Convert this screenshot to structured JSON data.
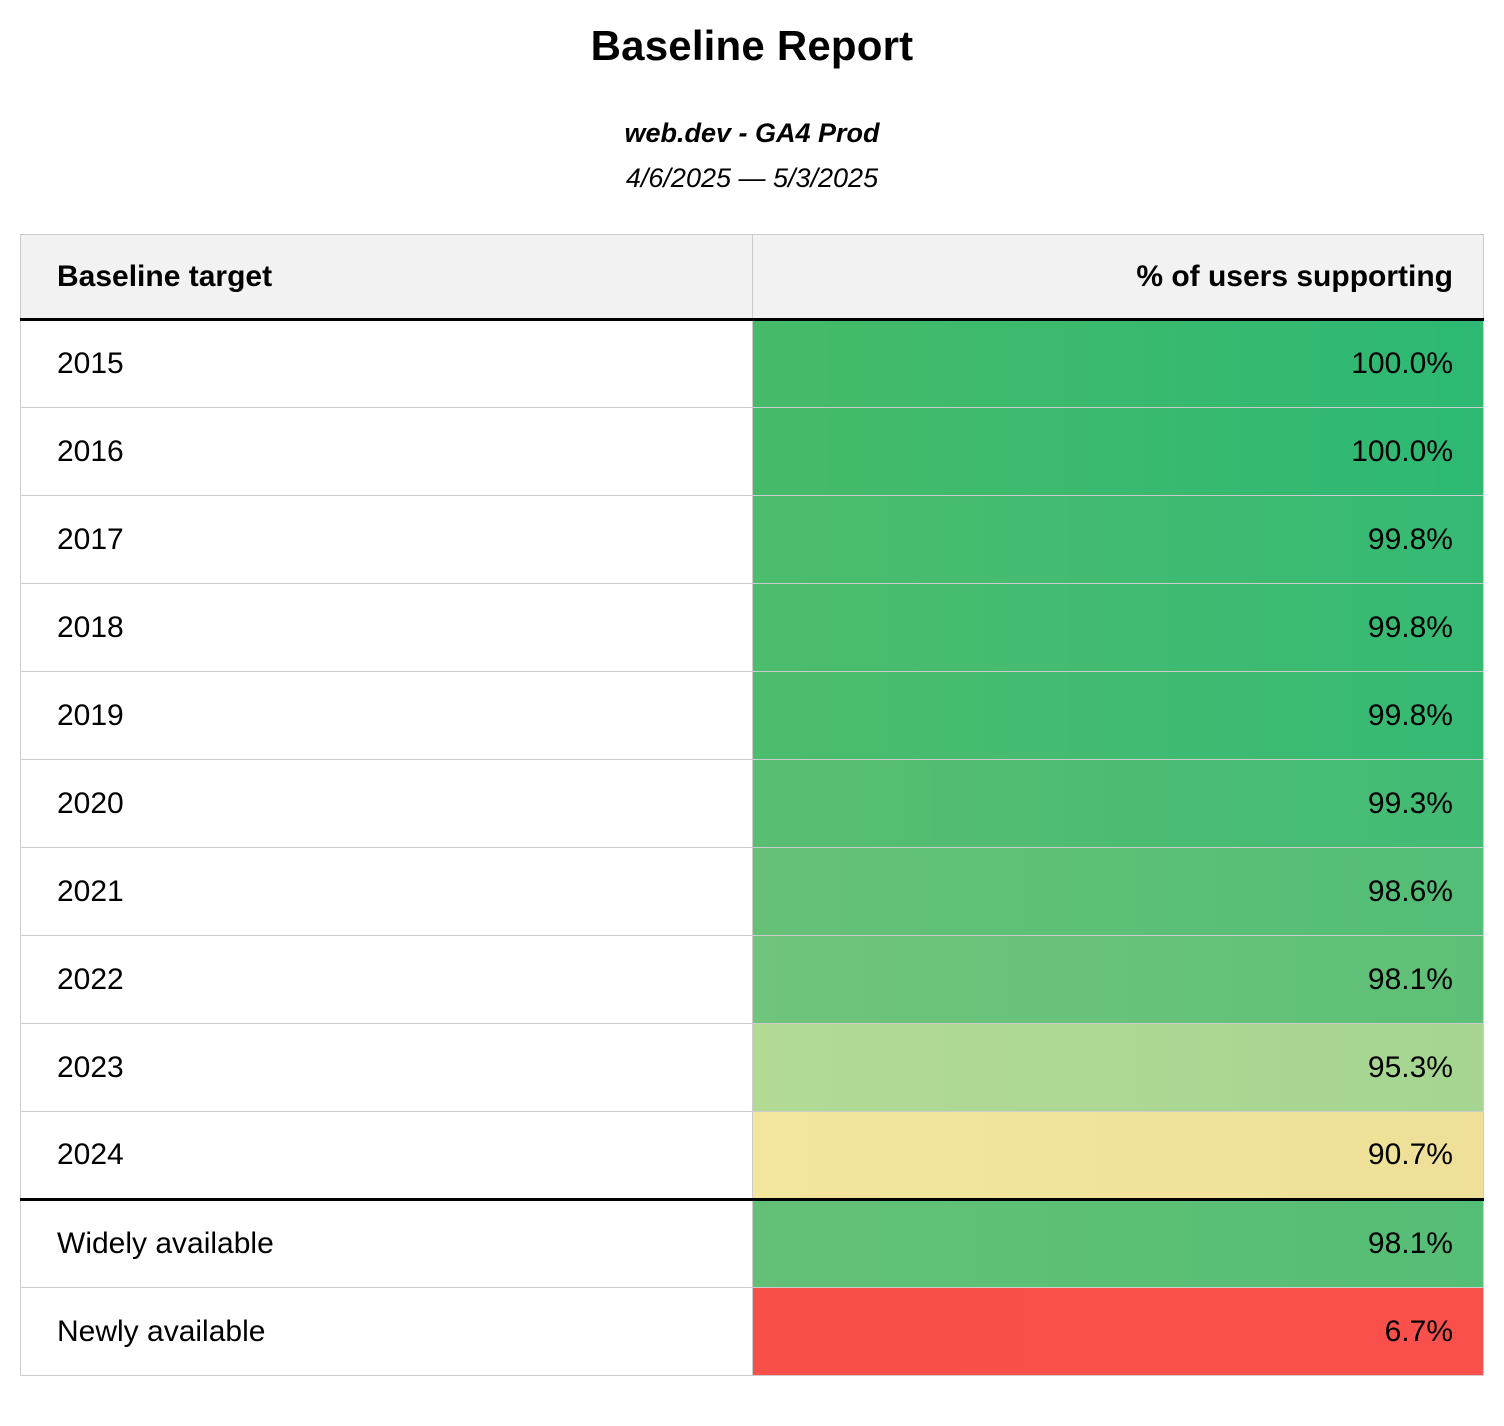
{
  "page": {
    "title": "Baseline Report",
    "subtitle": "web.dev - GA4 Prod",
    "date_range": "4/6/2025 — 5/3/2025"
  },
  "table": {
    "columns": [
      "Baseline target",
      "% of users supporting"
    ],
    "rows": [
      {
        "target": "2015",
        "value": "100.0%",
        "bg_left": "#46ba69",
        "bg_right": "#2db973",
        "divider_before": false
      },
      {
        "target": "2016",
        "value": "100.0%",
        "bg_left": "#46ba69",
        "bg_right": "#2db973",
        "divider_before": false
      },
      {
        "target": "2017",
        "value": "99.8%",
        "bg_left": "#4dbc6d",
        "bg_right": "#35ba74",
        "divider_before": false
      },
      {
        "target": "2018",
        "value": "99.8%",
        "bg_left": "#4dbc6d",
        "bg_right": "#35ba74",
        "divider_before": false
      },
      {
        "target": "2019",
        "value": "99.8%",
        "bg_left": "#4dbc6d",
        "bg_right": "#35ba74",
        "divider_before": false
      },
      {
        "target": "2020",
        "value": "99.3%",
        "bg_left": "#58be71",
        "bg_right": "#42bb75",
        "divider_before": false
      },
      {
        "target": "2021",
        "value": "98.6%",
        "bg_left": "#66c177",
        "bg_right": "#52be77",
        "divider_before": false
      },
      {
        "target": "2022",
        "value": "98.1%",
        "bg_left": "#70c47b",
        "bg_right": "#5ec078",
        "divider_before": false
      },
      {
        "target": "2023",
        "value": "95.3%",
        "bg_left": "#b2da95",
        "bg_right": "#a5d591",
        "divider_before": false
      },
      {
        "target": "2024",
        "value": "90.7%",
        "bg_left": "#f2e59c",
        "bg_right": "#eee098",
        "divider_before": false
      },
      {
        "target": "Widely available",
        "value": "98.1%",
        "bg_left": "#63c076",
        "bg_right": "#55be76",
        "divider_before": true
      },
      {
        "target": "Newly available",
        "value": "6.7%",
        "bg_left": "#f94f4b",
        "bg_right": "#f9504b",
        "divider_before": false
      }
    ]
  },
  "colors": {
    "header_background": "#f2f2f2",
    "row_divider": "#cccccc",
    "section_divider": "#000000",
    "good_green": "#3bb96e",
    "warn_yellow": "#f0e29a",
    "bad_red": "#f94f4b"
  },
  "chart_data": {
    "type": "table",
    "title": "Baseline Report",
    "subtitle": "web.dev - GA4 Prod",
    "date_range": "4/6/2025 — 5/3/2025",
    "columns": [
      "Baseline target",
      "% of users supporting"
    ],
    "rows": [
      [
        "2015",
        100.0
      ],
      [
        "2016",
        100.0
      ],
      [
        "2017",
        99.8
      ],
      [
        "2018",
        99.8
      ],
      [
        "2019",
        99.8
      ],
      [
        "2020",
        99.3
      ],
      [
        "2021",
        98.6
      ],
      [
        "2022",
        98.1
      ],
      [
        "2023",
        95.3
      ],
      [
        "2024",
        90.7
      ],
      [
        "Widely available",
        98.1
      ],
      [
        "Newly available",
        6.7
      ]
    ],
    "value_unit": "%",
    "color_scale": "green (high) to yellow to red (low)"
  }
}
